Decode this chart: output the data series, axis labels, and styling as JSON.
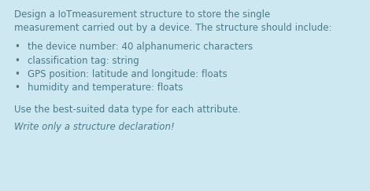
{
  "background_color": "#cde8f0",
  "text_color": "#4a7a8a",
  "title_line1": "Design a IoTmeasurement structure to store the single",
  "title_line2": "measurement carried out by a device. The structure should include:",
  "bullet_items": [
    "the device number: 40 alphanumeric characters",
    "classification tag: string",
    "GPS position: latitude and longitude: floats",
    "humidity and temperature: floats"
  ],
  "note_text": "Use the best-suited data type for each attribute.",
  "italic_text": "Write only a structure declaration!",
  "font_size": 8.5,
  "bullet_font_size": 8.5
}
